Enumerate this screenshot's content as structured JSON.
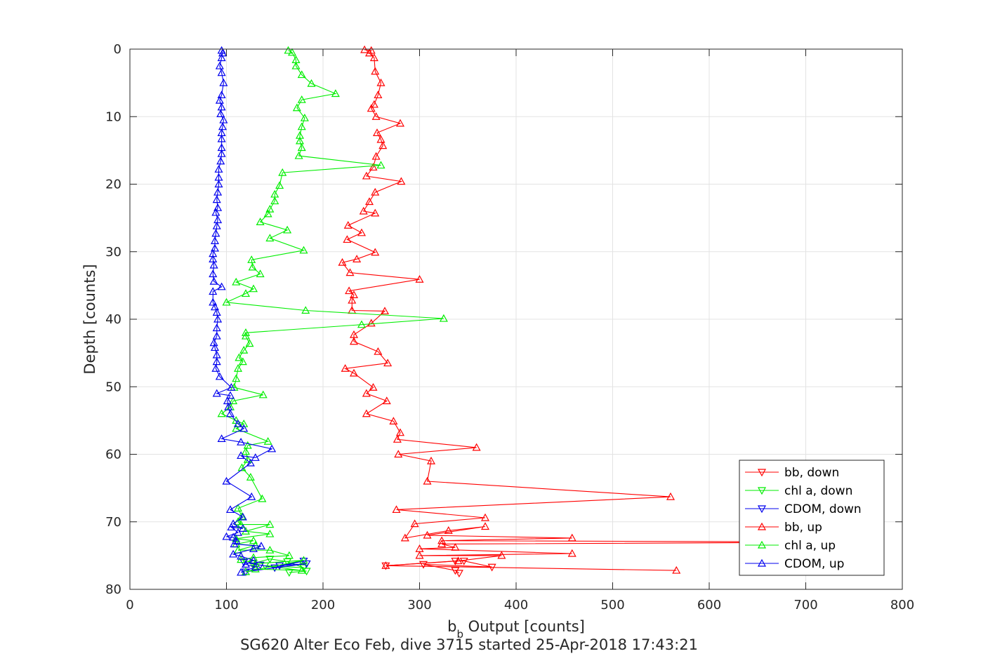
{
  "chart_data": {
    "type": "line",
    "title": "SG620 Alter Eco Feb, dive 3715 started 25-Apr-2018 17:43:21",
    "xlabel_main": "b",
    "xlabel_sub": "b",
    "xlabel_rest": " Output [counts]",
    "ylabel": "Depth [counts]",
    "xlim": [
      0,
      800
    ],
    "ylim": [
      0,
      80
    ],
    "y_reversed": true,
    "grid": true,
    "legend_position": "lower-right",
    "x_ticks": [
      0,
      100,
      200,
      300,
      400,
      500,
      600,
      700,
      800
    ],
    "y_ticks": [
      0,
      10,
      20,
      30,
      40,
      50,
      60,
      70,
      80
    ],
    "x_tick_labels": [
      "0",
      "100",
      "200",
      "300",
      "400",
      "500",
      "600",
      "700",
      "800"
    ],
    "y_tick_labels": [
      "0",
      "10",
      "20",
      "30",
      "40",
      "50",
      "60",
      "70",
      "80"
    ],
    "series": [
      {
        "name": "bb, down",
        "color": "#ff0000",
        "marker": "triangle-down",
        "points": [
          [
            265,
            76.5
          ],
          [
            337,
            75.8
          ],
          [
            346,
            75.8
          ],
          [
            375,
            76.7
          ],
          [
            304,
            76.3
          ],
          [
            337,
            77.2
          ],
          [
            341,
            77.6
          ]
        ]
      },
      {
        "name": "chl a, down",
        "color": "#00ee00",
        "marker": "triangle-down",
        "points": [
          [
            127,
            76.2
          ],
          [
            145,
            75.5
          ],
          [
            163,
            75.9
          ],
          [
            180,
            76.8
          ],
          [
            140,
            76.5
          ],
          [
            183,
            77.3
          ],
          [
            165,
            77.5
          ]
        ]
      },
      {
        "name": "CDOM, down",
        "color": "#0000ee",
        "marker": "triangle-down",
        "points": [
          [
            118,
            76
          ],
          [
            135,
            76.4
          ],
          [
            150,
            76.8
          ],
          [
            180,
            75.8
          ],
          [
            155,
            76.5
          ],
          [
            183,
            76.2
          ],
          [
            120,
            77.4
          ]
        ]
      },
      {
        "name": "bb, up",
        "color": "#ff0000",
        "marker": "triangle-up",
        "points": [
          [
            566,
            77.2
          ],
          [
            265,
            76.5
          ],
          [
            340,
            75.8
          ],
          [
            385,
            75
          ],
          [
            300,
            75
          ],
          [
            458,
            74.7
          ],
          [
            300,
            74
          ],
          [
            337,
            73.8
          ],
          [
            323,
            73.3
          ],
          [
            770,
            73
          ],
          [
            323,
            72.8
          ],
          [
            458,
            72.4
          ],
          [
            308,
            72
          ],
          [
            368,
            70.7
          ],
          [
            330,
            71.3
          ],
          [
            285,
            72.4
          ],
          [
            295,
            70.3
          ],
          [
            368,
            69.4
          ],
          [
            276,
            68.2
          ],
          [
            560,
            66.3
          ],
          [
            308,
            64
          ],
          [
            312,
            61
          ],
          [
            278,
            60
          ],
          [
            359,
            59
          ],
          [
            277,
            57.8
          ],
          [
            280,
            56.8
          ],
          [
            273,
            55.1
          ],
          [
            245,
            54
          ],
          [
            266,
            52.1
          ],
          [
            245,
            51
          ],
          [
            252,
            50.1
          ],
          [
            232,
            48
          ],
          [
            223,
            47.3
          ],
          [
            267,
            46.5
          ],
          [
            257,
            44.8
          ],
          [
            232,
            43.3
          ],
          [
            232,
            42.3
          ],
          [
            250,
            40.6
          ],
          [
            264,
            38.8
          ],
          [
            230,
            38.7
          ],
          [
            230,
            37.2
          ],
          [
            232,
            36.4
          ],
          [
            227,
            35.8
          ],
          [
            300,
            34.1
          ],
          [
            228,
            33.1
          ],
          [
            220,
            31.6
          ],
          [
            235,
            31.1
          ],
          [
            254,
            30.1
          ],
          [
            225,
            28.2
          ],
          [
            240,
            27.2
          ],
          [
            226,
            26.1
          ],
          [
            254,
            24.3
          ],
          [
            242,
            24
          ],
          [
            248,
            22.6
          ],
          [
            254,
            21.2
          ],
          [
            281,
            19.6
          ],
          [
            245,
            18.8
          ],
          [
            252,
            17.5
          ],
          [
            255,
            15.9
          ],
          [
            262,
            14.3
          ],
          [
            260,
            13.4
          ],
          [
            256,
            12.4
          ],
          [
            280,
            11
          ],
          [
            255,
            10
          ],
          [
            250,
            8.8
          ],
          [
            253,
            8.2
          ],
          [
            257,
            6.8
          ],
          [
            260,
            5
          ],
          [
            254,
            3.3
          ],
          [
            253,
            1.3
          ],
          [
            248,
            0.6
          ],
          [
            250,
            0.2
          ],
          [
            243,
            0.1
          ]
        ]
      },
      {
        "name": "chl a, up",
        "color": "#00ee00",
        "marker": "triangle-up",
        "points": [
          [
            178,
            77.2
          ],
          [
            130,
            77
          ],
          [
            120,
            77.4
          ],
          [
            180,
            75.7
          ],
          [
            130,
            76.2
          ],
          [
            115,
            75.6
          ],
          [
            128,
            75.3
          ],
          [
            165,
            75
          ],
          [
            145,
            74.2
          ],
          [
            112,
            74.2
          ],
          [
            130,
            73.5
          ],
          [
            110,
            73.3
          ],
          [
            128,
            72.8
          ],
          [
            110,
            72.5
          ],
          [
            145,
            71.8
          ],
          [
            120,
            71.4
          ],
          [
            145,
            70.4
          ],
          [
            115,
            70.4
          ],
          [
            112,
            70
          ],
          [
            116,
            69.2
          ],
          [
            112,
            68
          ],
          [
            137,
            66.6
          ],
          [
            125,
            63.4
          ],
          [
            116,
            62
          ],
          [
            122,
            60.8
          ],
          [
            120,
            59.6
          ],
          [
            122,
            58.7
          ],
          [
            143,
            58.1
          ],
          [
            110,
            56.2
          ],
          [
            118,
            55.5
          ],
          [
            110,
            55
          ],
          [
            95,
            54
          ],
          [
            104,
            53
          ],
          [
            107,
            52.1
          ],
          [
            138,
            51.2
          ],
          [
            108,
            50.1
          ],
          [
            110,
            48.8
          ],
          [
            112,
            47.3
          ],
          [
            117,
            46.3
          ],
          [
            113,
            45.7
          ],
          [
            118,
            44.6
          ],
          [
            124,
            43.6
          ],
          [
            120,
            42.5
          ],
          [
            120,
            42
          ],
          [
            240,
            40.8
          ],
          [
            325,
            39.9
          ],
          [
            182,
            38.7
          ],
          [
            100,
            37.5
          ],
          [
            120,
            36.2
          ],
          [
            128,
            35.5
          ],
          [
            110,
            34.5
          ],
          [
            135,
            33.3
          ],
          [
            127,
            32.3
          ],
          [
            126,
            31.2
          ],
          [
            180,
            29.8
          ],
          [
            145,
            28
          ],
          [
            163,
            26.8
          ],
          [
            135,
            25.6
          ],
          [
            143,
            24.4
          ],
          [
            145,
            23.7
          ],
          [
            150,
            22.5
          ],
          [
            150,
            21.5
          ],
          [
            155,
            20.2
          ],
          [
            158,
            18.3
          ],
          [
            260,
            17.2
          ],
          [
            175,
            15.8
          ],
          [
            178,
            14.6
          ],
          [
            176,
            13.6
          ],
          [
            176,
            12.8
          ],
          [
            178,
            11.5
          ],
          [
            181,
            10.2
          ],
          [
            173,
            8.7
          ],
          [
            178,
            7.5
          ],
          [
            213,
            6.6
          ],
          [
            188,
            5.1
          ],
          [
            178,
            3.8
          ],
          [
            172,
            2.5
          ],
          [
            172,
            1.6
          ],
          [
            168,
            0.5
          ],
          [
            164,
            0.2
          ]
        ]
      },
      {
        "name": "CDOM, up",
        "color": "#0000ee",
        "marker": "triangle-up",
        "points": [
          [
            115,
            77.5
          ],
          [
            130,
            76.7
          ],
          [
            120,
            76.3
          ],
          [
            128,
            75.7
          ],
          [
            115,
            75.1
          ],
          [
            107,
            74.8
          ],
          [
            128,
            74
          ],
          [
            136,
            73.6
          ],
          [
            108,
            73.3
          ],
          [
            110,
            72.8
          ],
          [
            107,
            72.3
          ],
          [
            100,
            72.2
          ],
          [
            112,
            71.6
          ],
          [
            105,
            70.8
          ],
          [
            117,
            71
          ],
          [
            107,
            70.3
          ],
          [
            117,
            69.3
          ],
          [
            104,
            68.2
          ],
          [
            126,
            66.3
          ],
          [
            100,
            64
          ],
          [
            125,
            61.3
          ],
          [
            115,
            60.2
          ],
          [
            130,
            60.5
          ],
          [
            147,
            59.2
          ],
          [
            115,
            58.2
          ],
          [
            95,
            57.7
          ],
          [
            118,
            56.2
          ],
          [
            112,
            55.5
          ],
          [
            104,
            54
          ],
          [
            102,
            53
          ],
          [
            101,
            52.1
          ],
          [
            104,
            51.3
          ],
          [
            90,
            51
          ],
          [
            105,
            50.1
          ],
          [
            93,
            48.5
          ],
          [
            89,
            47.3
          ],
          [
            90,
            46.3
          ],
          [
            90,
            45.3
          ],
          [
            88,
            44.2
          ],
          [
            87,
            43.5
          ],
          [
            90,
            42.5
          ],
          [
            90,
            41.3
          ],
          [
            91,
            40
          ],
          [
            90,
            39
          ],
          [
            88,
            38.2
          ],
          [
            86,
            37.5
          ],
          [
            86,
            35.9
          ],
          [
            95,
            35.2
          ],
          [
            87,
            34.4
          ],
          [
            86,
            33.3
          ],
          [
            87,
            32
          ],
          [
            86,
            31.1
          ],
          [
            86,
            30.3
          ],
          [
            88,
            29.5
          ],
          [
            88,
            28.4
          ],
          [
            89,
            27.3
          ],
          [
            90,
            26.2
          ],
          [
            91,
            25.3
          ],
          [
            89,
            24.2
          ],
          [
            91,
            23.5
          ],
          [
            90,
            22.3
          ],
          [
            91,
            21.2
          ],
          [
            92,
            20
          ],
          [
            92,
            19
          ],
          [
            92,
            17.8
          ],
          [
            94,
            16.6
          ],
          [
            95,
            15.5
          ],
          [
            95,
            14.6
          ],
          [
            95,
            13.3
          ],
          [
            95,
            12.4
          ],
          [
            96,
            11.5
          ],
          [
            97,
            10.5
          ],
          [
            94,
            9.6
          ],
          [
            95,
            8.6
          ],
          [
            93,
            7.6
          ],
          [
            95,
            6.8
          ],
          [
            97,
            5
          ],
          [
            95,
            3.5
          ],
          [
            93,
            2.5
          ],
          [
            95,
            1.3
          ],
          [
            96,
            0.6
          ],
          [
            95,
            0.2
          ]
        ]
      }
    ]
  }
}
